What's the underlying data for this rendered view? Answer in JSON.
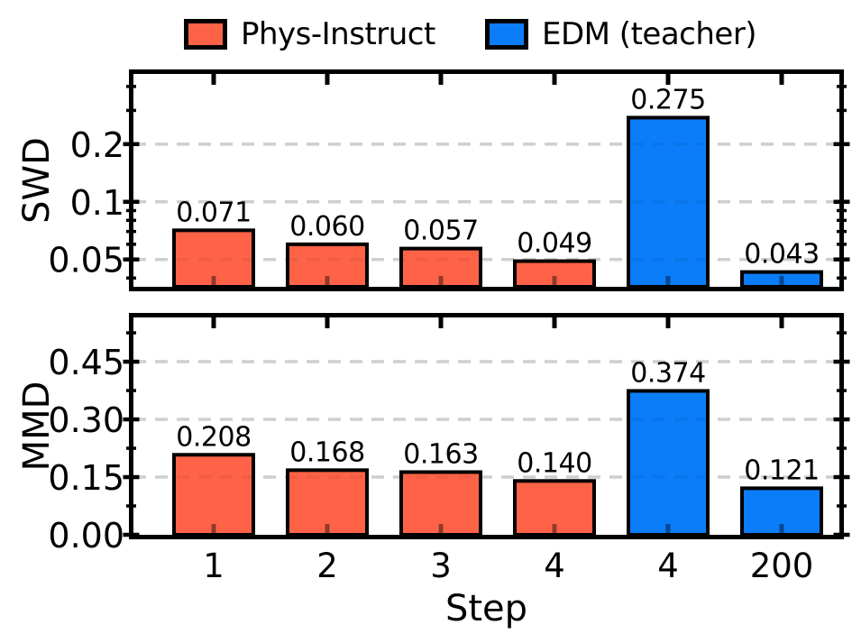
{
  "figure": {
    "legend": {
      "position": "top-center",
      "items": [
        {
          "label": "Phys-Instruct",
          "color": "#FF6347",
          "swatch": "filled-square-black-border"
        },
        {
          "label": "EDM (teacher)",
          "color": "#0B7DF8",
          "swatch": "filled-square-black-border"
        }
      ]
    },
    "colors": {
      "background": "#FFFFFF",
      "bar_edge": "#000000",
      "grid": "#DCDCDC",
      "text": "#000000",
      "phys_instruct": "#FF6347",
      "edm_teacher": "#0B7DF8"
    },
    "xlabel": "Step"
  },
  "chart_data": [
    {
      "type": "bar",
      "panel": "top",
      "ylabel": "SWD",
      "yscale": "log",
      "ylim": [
        0.036,
        0.465
      ],
      "yticks": [
        0.05,
        0.1,
        0.2
      ],
      "ytick_labels": [
        "0.05",
        "0.1",
        "0.2"
      ],
      "yticks_minor": [
        0.04,
        0.06,
        0.07,
        0.08,
        0.09,
        0.3,
        0.4
      ],
      "grid": "horizontal-dashed-at-major-ticks",
      "categories": [
        "1",
        "2",
        "3",
        "4",
        "4",
        "200"
      ],
      "series_of_bar": [
        "Phys-Instruct",
        "Phys-Instruct",
        "Phys-Instruct",
        "Phys-Instruct",
        "EDM (teacher)",
        "EDM (teacher)"
      ],
      "bar_colors": [
        "#FF6347",
        "#FF6347",
        "#FF6347",
        "#FF6347",
        "#0B7DF8",
        "#0B7DF8"
      ],
      "values": [
        0.071,
        0.06,
        0.057,
        0.049,
        0.275,
        0.043
      ],
      "value_labels": [
        "0.071",
        "0.060",
        "0.057",
        "0.049",
        "0.275",
        "0.043"
      ]
    },
    {
      "type": "bar",
      "panel": "bottom",
      "ylabel": "MMD",
      "xlabel": "Step",
      "yscale": "linear",
      "ylim": [
        0,
        0.565
      ],
      "yticks": [
        0.0,
        0.15,
        0.3,
        0.45
      ],
      "ytick_labels": [
        "0.00",
        "0.15",
        "0.30",
        "0.45"
      ],
      "yticks_minor": [
        0.075,
        0.225,
        0.375,
        0.525
      ],
      "grid": "horizontal-dashed-at-major-ticks",
      "categories": [
        "1",
        "2",
        "3",
        "4",
        "4",
        "200"
      ],
      "series_of_bar": [
        "Phys-Instruct",
        "Phys-Instruct",
        "Phys-Instruct",
        "Phys-Instruct",
        "EDM (teacher)",
        "EDM (teacher)"
      ],
      "bar_colors": [
        "#FF6347",
        "#FF6347",
        "#FF6347",
        "#FF6347",
        "#0B7DF8",
        "#0B7DF8"
      ],
      "values": [
        0.208,
        0.168,
        0.163,
        0.14,
        0.374,
        0.121
      ],
      "value_labels": [
        "0.208",
        "0.168",
        "0.163",
        "0.140",
        "0.374",
        "0.121"
      ]
    }
  ]
}
